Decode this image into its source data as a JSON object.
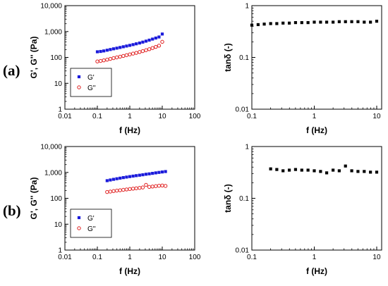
{
  "panels": [
    {
      "label": "(a)"
    },
    {
      "label": "(b)"
    }
  ],
  "colors": {
    "g_prime": "#1a1adb",
    "g_double": "#e02020",
    "tan": "#000000",
    "axis": "#000000"
  },
  "chart_data": [
    {
      "panel": "(a)",
      "type": "scatter",
      "xscale": "log",
      "yscale": "log",
      "xlabel": "f (Hz)",
      "ylabel": "G', G'' (Pa)",
      "xlim": [
        0.01,
        100
      ],
      "ylim": [
        1,
        10000
      ],
      "xticks": [
        "0.01",
        "0.1",
        "1",
        "10",
        "100"
      ],
      "yticks": [
        "1",
        "10",
        "100",
        "1,000",
        "10,000"
      ],
      "legend": "bottom-left",
      "series": [
        {
          "name": "G'",
          "marker": "filled-square",
          "color": "#1a1adb",
          "x": [
            0.1,
            0.126,
            0.158,
            0.2,
            0.251,
            0.316,
            0.398,
            0.501,
            0.631,
            0.794,
            1.0,
            1.26,
            1.58,
            2.0,
            2.51,
            3.16,
            3.98,
            5.01,
            6.31,
            7.94,
            10.0
          ],
          "y": [
            165,
            170,
            178,
            190,
            202,
            215,
            228,
            242,
            258,
            275,
            292,
            312,
            335,
            360,
            390,
            425,
            465,
            510,
            560,
            615,
            800
          ]
        },
        {
          "name": "G''",
          "marker": "open-circle",
          "color": "#e02020",
          "x": [
            0.1,
            0.126,
            0.158,
            0.2,
            0.251,
            0.316,
            0.398,
            0.501,
            0.631,
            0.794,
            1.0,
            1.26,
            1.58,
            2.0,
            2.51,
            3.16,
            3.98,
            5.01,
            6.31,
            7.94,
            10.0
          ],
          "y": [
            70,
            73,
            77,
            82,
            88,
            94,
            100,
            107,
            114,
            122,
            131,
            140,
            150,
            162,
            175,
            190,
            208,
            230,
            255,
            285,
            400
          ]
        }
      ]
    },
    {
      "panel": "(a)",
      "type": "scatter",
      "xscale": "log",
      "yscale": "log",
      "xlabel": "f (Hz)",
      "ylabel": "tanδ (-)",
      "xlim": [
        0.1,
        12
      ],
      "ylim": [
        0.01,
        1
      ],
      "xticks": [
        "0.1",
        "1",
        "10"
      ],
      "yticks": [
        "0.01",
        "0.1",
        "1"
      ],
      "series": [
        {
          "name": "tanδ",
          "marker": "filled-square",
          "color": "#000000",
          "x": [
            0.1,
            0.126,
            0.158,
            0.2,
            0.251,
            0.316,
            0.398,
            0.501,
            0.631,
            0.794,
            1.0,
            1.26,
            1.58,
            2.0,
            2.51,
            3.16,
            3.98,
            5.01,
            6.31,
            7.94,
            10.0
          ],
          "y": [
            0.42,
            0.43,
            0.44,
            0.45,
            0.45,
            0.46,
            0.46,
            0.47,
            0.47,
            0.47,
            0.48,
            0.48,
            0.48,
            0.48,
            0.49,
            0.49,
            0.49,
            0.49,
            0.48,
            0.48,
            0.5
          ]
        }
      ]
    },
    {
      "panel": "(b)",
      "type": "scatter",
      "xscale": "log",
      "yscale": "log",
      "xlabel": "f (Hz)",
      "ylabel": "G', G'' (Pa)",
      "xlim": [
        0.01,
        100
      ],
      "ylim": [
        1,
        10000
      ],
      "xticks": [
        "0.01",
        "0.1",
        "1",
        "10",
        "100"
      ],
      "yticks": [
        "1",
        "10",
        "100",
        "1,000",
        "10,000"
      ],
      "legend": "bottom-left",
      "series": [
        {
          "name": "G'",
          "marker": "filled-square",
          "color": "#1a1adb",
          "x": [
            0.2,
            0.251,
            0.316,
            0.398,
            0.501,
            0.631,
            0.794,
            1.0,
            1.26,
            1.58,
            2.0,
            2.51,
            3.16,
            3.98,
            5.01,
            6.31,
            7.94,
            10.0,
            12.6
          ],
          "y": [
            480,
            510,
            540,
            570,
            600,
            630,
            660,
            690,
            720,
            750,
            780,
            810,
            850,
            880,
            920,
            960,
            1000,
            1040,
            1080
          ]
        },
        {
          "name": "G''",
          "marker": "open-circle",
          "color": "#e02020",
          "x": [
            0.2,
            0.251,
            0.316,
            0.398,
            0.501,
            0.631,
            0.794,
            1.0,
            1.26,
            1.58,
            2.0,
            2.51,
            3.16,
            3.98,
            5.01,
            6.31,
            7.94,
            10.0,
            12.6
          ],
          "y": [
            175,
            182,
            190,
            198,
            205,
            212,
            220,
            228,
            236,
            244,
            252,
            262,
            330,
            275,
            285,
            295,
            305,
            312,
            300
          ]
        }
      ]
    },
    {
      "panel": "(b)",
      "type": "scatter",
      "xscale": "log",
      "yscale": "log",
      "xlabel": "f (Hz)",
      "ylabel": "tanδ (-)",
      "xlim": [
        0.1,
        12
      ],
      "ylim": [
        0.01,
        1
      ],
      "xticks": [
        "0.1",
        "1",
        "10"
      ],
      "yticks": [
        "0.01",
        "0.1",
        "1"
      ],
      "series": [
        {
          "name": "tanδ",
          "marker": "filled-square",
          "color": "#000000",
          "x": [
            0.2,
            0.251,
            0.316,
            0.398,
            0.501,
            0.631,
            0.794,
            1.0,
            1.26,
            1.58,
            2.0,
            2.51,
            3.16,
            3.98,
            5.01,
            6.31,
            7.94,
            10.0,
            12.6
          ],
          "y": [
            0.37,
            0.36,
            0.34,
            0.35,
            0.36,
            0.35,
            0.35,
            0.34,
            0.33,
            0.31,
            0.35,
            0.34,
            0.42,
            0.34,
            0.33,
            0.33,
            0.32,
            0.32,
            0.31
          ]
        }
      ]
    }
  ]
}
